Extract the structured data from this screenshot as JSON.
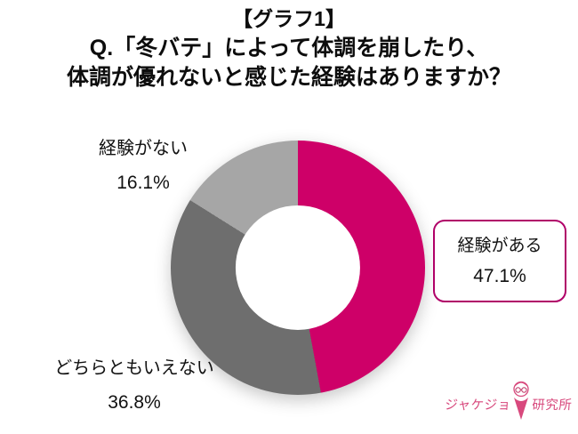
{
  "title": {
    "line1": "【グラフ1】",
    "line2": "Q.「冬バテ」によって体調を崩したり、",
    "line3": "体調が優れないと感じた経験はありますか？"
  },
  "chart_data": {
    "type": "pie",
    "donut": true,
    "hole_ratio": 0.49,
    "start_angle_deg": 0,
    "direction": "clockwise",
    "title": "【グラフ1】 Q.「冬バテ」によって体調を崩したり、体調が優れないと感じた経験はありますか？",
    "slices": [
      {
        "label": "経験がある",
        "value": 47.1,
        "color": "#ce0068"
      },
      {
        "label": "どちらともいえない",
        "value": 36.8,
        "color": "#6e6e6e"
      },
      {
        "label": "経験がない",
        "value": 16.1,
        "color": "#a6a6a6"
      }
    ],
    "highlighted_slice": "経験がある",
    "legend_position": "labels-outside"
  },
  "logo": {
    "text_left": "ジャケジョ",
    "text_right": "研究所",
    "mascot_icon": "girl-with-glasses-icon"
  },
  "colors": {
    "accent_pink": "#ce0068",
    "dark_gray": "#6e6e6e",
    "light_gray": "#a6a6a6",
    "callout_border": "#b00068",
    "logo_pink": "#d8497d",
    "text": "#111111",
    "background": "#ffffff"
  }
}
